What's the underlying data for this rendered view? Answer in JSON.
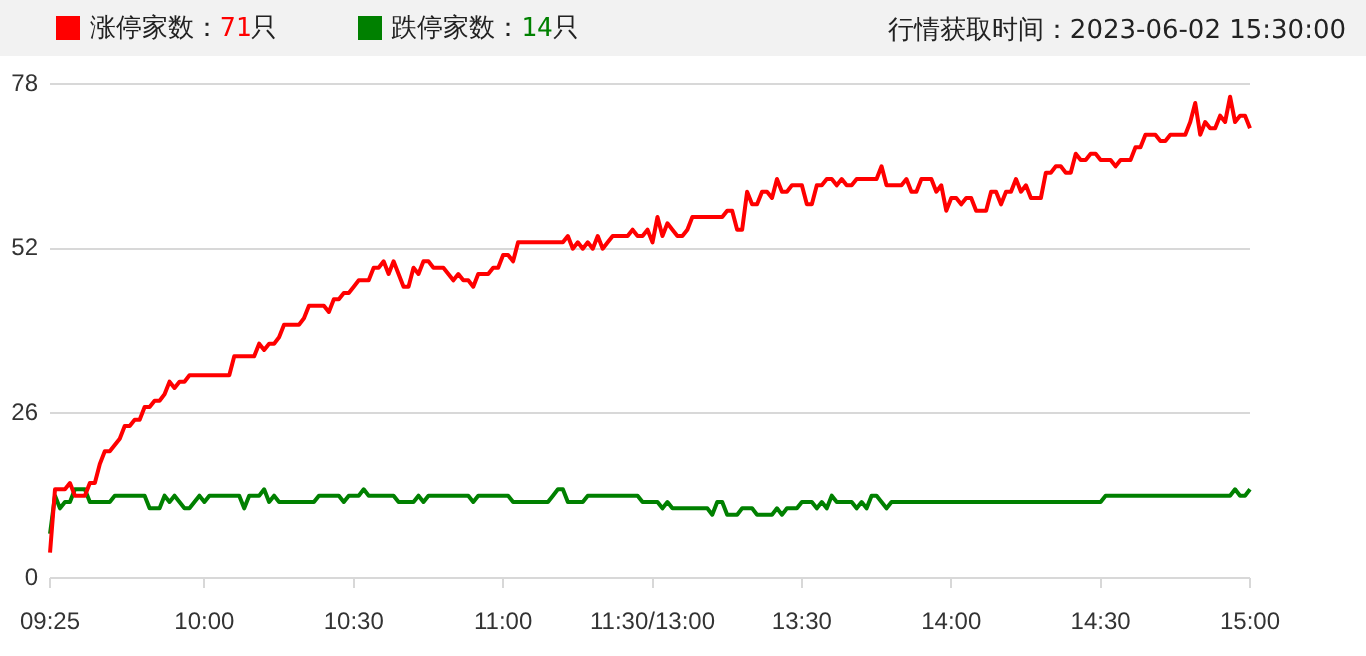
{
  "chart_data": {
    "type": "line",
    "legend": "top left",
    "grid": "y",
    "marker": "none",
    "line_style": "solid",
    "annotations": [
      "行情获取时间：2023-06-02 15:30:00"
    ],
    "categories": [
      "09:25",
      null,
      null,
      null,
      null,
      null,
      null,
      null,
      null,
      null,
      null,
      null,
      null,
      null,
      null,
      null,
      null,
      null,
      null,
      null,
      null,
      null,
      null,
      null,
      null,
      null,
      null,
      null,
      null,
      null,
      null,
      "10:00",
      null,
      null,
      null,
      null,
      null,
      null,
      null,
      null,
      null,
      null,
      null,
      null,
      null,
      null,
      null,
      null,
      null,
      null,
      null,
      null,
      null,
      null,
      null,
      null,
      null,
      null,
      null,
      null,
      null,
      "10:30",
      null,
      null,
      null,
      null,
      null,
      null,
      null,
      null,
      null,
      null,
      null,
      null,
      null,
      null,
      null,
      null,
      null,
      null,
      null,
      null,
      null,
      null,
      null,
      null,
      null,
      null,
      null,
      null,
      null,
      "11:00",
      null,
      null,
      null,
      null,
      null,
      null,
      null,
      null,
      null,
      null,
      null,
      null,
      null,
      null,
      null,
      null,
      null,
      null,
      null,
      null,
      null,
      null,
      null,
      null,
      null,
      null,
      null,
      null,
      null,
      "11:30/13:00",
      null,
      null,
      null,
      null,
      null,
      null,
      null,
      null,
      null,
      null,
      null,
      null,
      null,
      null,
      null,
      null,
      null,
      null,
      null,
      null,
      null,
      null,
      null,
      null,
      null,
      null,
      null,
      null,
      null,
      "13:30",
      null,
      null,
      null,
      null,
      null,
      null,
      null,
      null,
      null,
      null,
      null,
      null,
      null,
      null,
      null,
      null,
      null,
      null,
      null,
      null,
      null,
      null,
      null,
      null,
      null,
      null,
      null,
      null,
      null,
      "14:00",
      null,
      null,
      null,
      null,
      null,
      null,
      null,
      null,
      null,
      null,
      null,
      null,
      null,
      null,
      null,
      null,
      null,
      null,
      null,
      null,
      null,
      null,
      null,
      null,
      null,
      null,
      null,
      null,
      null,
      "14:30",
      null,
      null,
      null,
      null,
      null,
      null,
      null,
      null,
      null,
      null,
      null,
      null,
      null,
      null,
      null,
      null,
      null,
      null,
      null,
      null,
      null,
      null,
      null,
      null,
      null,
      null,
      null,
      null,
      null,
      "15:00"
    ],
    "ylim": [
      0,
      78
    ],
    "yticks": [
      0,
      26,
      52,
      78
    ],
    "series": [
      {
        "name": "涨停家数：71只",
        "color": "#ff0000",
        "values": [
          4,
          14,
          14,
          14,
          15,
          13,
          13,
          13,
          15,
          15,
          18,
          20,
          20,
          21,
          22,
          24,
          24,
          25,
          25,
          27,
          27,
          28,
          28,
          29,
          31,
          30,
          31,
          31,
          32,
          32,
          32,
          32,
          32,
          32,
          32,
          32,
          32,
          35,
          35,
          35,
          35,
          35,
          37,
          36,
          37,
          37,
          38,
          40,
          40,
          40,
          40,
          41,
          43,
          43,
          43,
          43,
          42,
          44,
          44,
          45,
          45,
          46,
          47,
          47,
          47,
          49,
          49,
          50,
          48,
          50,
          48,
          46,
          46,
          49,
          48,
          50,
          50,
          49,
          49,
          49,
          48,
          47,
          48,
          47,
          47,
          46,
          48,
          48,
          48,
          49,
          49,
          51,
          51,
          50,
          53,
          53,
          53,
          53,
          53,
          53,
          53,
          53,
          53,
          53,
          54,
          52,
          53,
          52,
          53,
          52,
          54,
          52,
          53,
          54,
          54,
          54,
          54,
          55,
          54,
          54,
          55,
          53,
          57,
          54,
          56,
          55,
          54,
          54,
          55,
          57,
          57,
          57,
          57,
          57,
          57,
          57,
          58,
          58,
          55,
          55,
          61,
          59,
          59,
          61,
          61,
          60,
          63,
          61,
          61,
          62,
          62,
          62,
          59,
          59,
          62,
          62,
          63,
          63,
          62,
          63,
          62,
          62,
          63,
          63,
          63,
          63,
          63,
          65,
          62,
          62,
          62,
          62,
          63,
          61,
          61,
          63,
          63,
          63,
          61,
          62,
          58,
          60,
          60,
          59,
          60,
          60,
          58,
          58,
          58,
          61,
          61,
          59,
          61,
          61,
          63,
          61,
          62,
          60,
          60,
          60,
          64,
          64,
          65,
          65,
          64,
          64,
          67,
          66,
          66,
          67,
          67,
          66,
          66,
          66,
          65,
          66,
          66,
          66,
          68,
          68,
          70,
          70,
          70,
          69,
          69,
          70,
          70,
          70,
          70,
          72,
          75,
          70,
          72,
          71,
          71,
          73,
          72,
          76,
          72,
          73,
          73,
          71
        ]
      },
      {
        "name": "跌停家数：14只",
        "color": "#008000",
        "values": [
          7,
          13,
          11,
          12,
          12,
          14,
          14,
          14,
          12,
          12,
          12,
          12,
          12,
          13,
          13,
          13,
          13,
          13,
          13,
          13,
          11,
          11,
          11,
          13,
          12,
          13,
          12,
          11,
          11,
          12,
          13,
          12,
          13,
          13,
          13,
          13,
          13,
          13,
          13,
          11,
          13,
          13,
          13,
          14,
          12,
          13,
          12,
          12,
          12,
          12,
          12,
          12,
          12,
          12,
          13,
          13,
          13,
          13,
          13,
          12,
          13,
          13,
          13,
          14,
          13,
          13,
          13,
          13,
          13,
          13,
          12,
          12,
          12,
          12,
          13,
          12,
          13,
          13,
          13,
          13,
          13,
          13,
          13,
          13,
          13,
          12,
          13,
          13,
          13,
          13,
          13,
          13,
          13,
          12,
          12,
          12,
          12,
          12,
          12,
          12,
          12,
          13,
          14,
          14,
          12,
          12,
          12,
          12,
          13,
          13,
          13,
          13,
          13,
          13,
          13,
          13,
          13,
          13,
          13,
          12,
          12,
          12,
          12,
          11,
          12,
          11,
          11,
          11,
          11,
          11,
          11,
          11,
          11,
          10,
          12,
          12,
          10,
          10,
          10,
          11,
          11,
          11,
          10,
          10,
          10,
          10,
          11,
          10,
          11,
          11,
          11,
          12,
          12,
          12,
          11,
          12,
          11,
          13,
          12,
          12,
          12,
          12,
          11,
          12,
          11,
          13,
          13,
          12,
          11,
          12,
          12,
          12,
          12,
          12,
          12,
          12,
          12,
          12,
          12,
          12,
          12,
          12,
          12,
          12,
          12,
          12,
          12,
          12,
          12,
          12,
          12,
          12,
          12,
          12,
          12,
          12,
          12,
          12,
          12,
          12,
          12,
          12,
          12,
          12,
          12,
          12,
          12,
          12,
          12,
          12,
          12,
          12,
          13,
          13,
          13,
          13,
          13,
          13,
          13,
          13,
          13,
          13,
          13,
          13,
          13,
          13,
          13,
          13,
          13,
          13,
          13,
          13,
          13,
          13,
          13,
          13,
          13,
          13,
          14,
          13,
          13,
          14
        ]
      }
    ]
  }
}
